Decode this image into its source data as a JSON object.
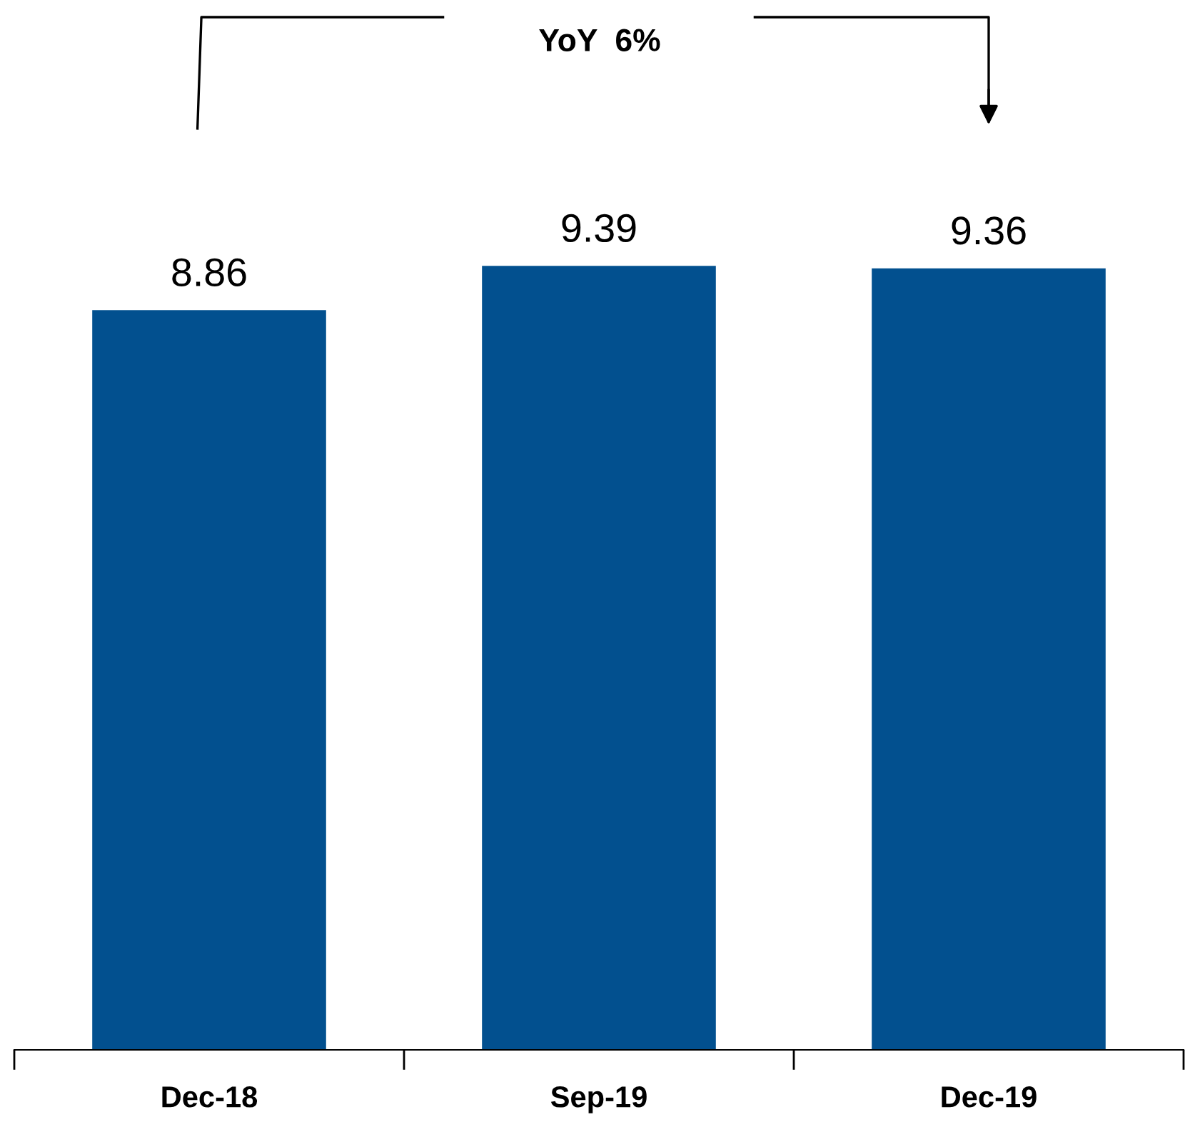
{
  "chart_data": {
    "type": "bar",
    "categories": [
      "Dec-18",
      "Sep-19",
      "Dec-19"
    ],
    "values": [
      8.86,
      9.39,
      9.36
    ],
    "color": "#02508f",
    "data_labels": true,
    "grid": false,
    "legend": false,
    "annotations": [
      "YoY  6%"
    ]
  }
}
